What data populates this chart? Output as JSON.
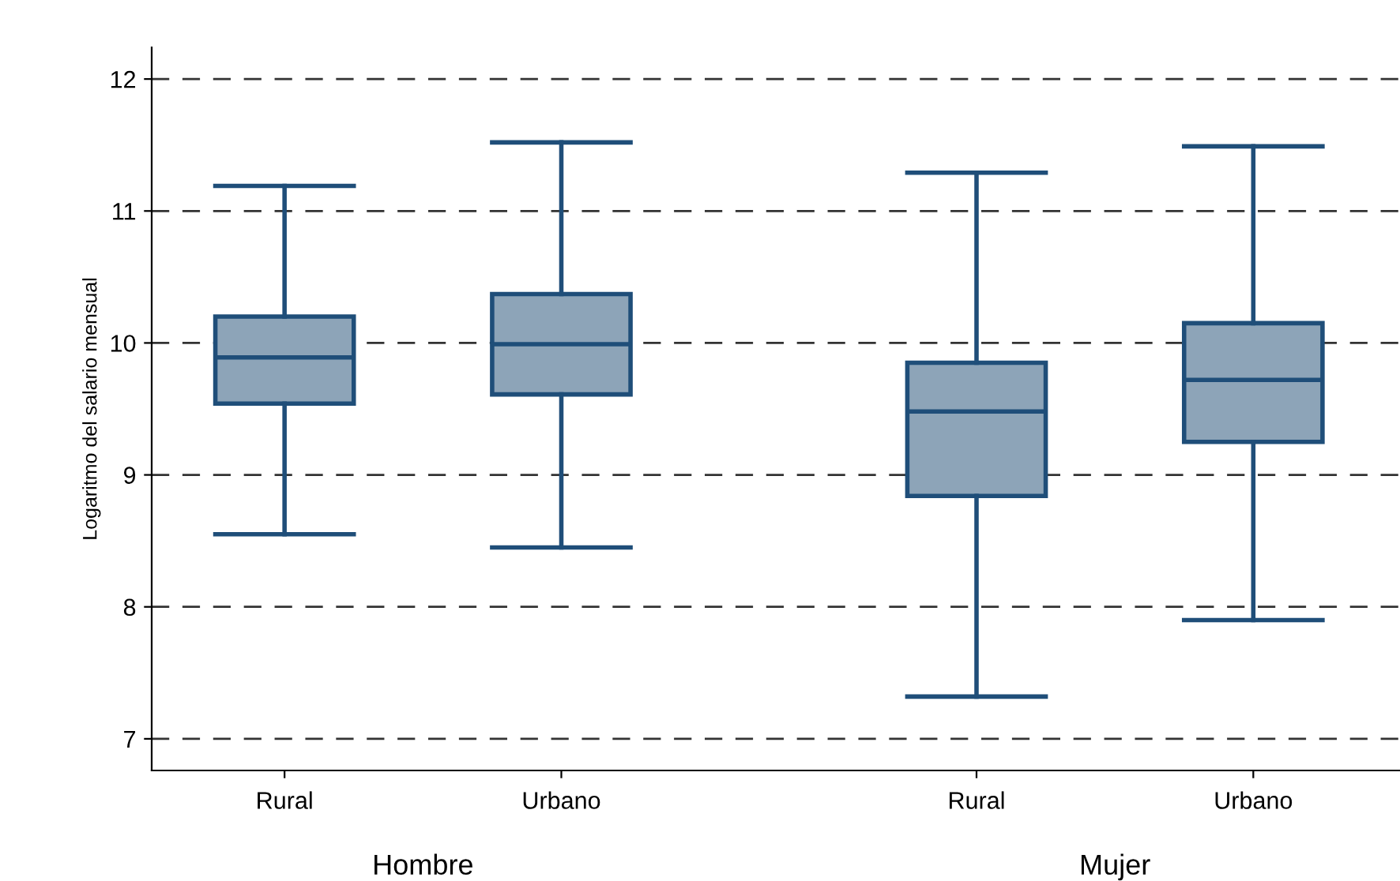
{
  "chart_data": {
    "type": "box",
    "ylabel": "Logaritmo del salario mensual",
    "categories": [
      "Rural",
      "Urbano",
      "Rural",
      "Urbano"
    ],
    "annotations": [
      "Hombre",
      "Mujer"
    ],
    "series": [
      {
        "color": "#8da4b8",
        "boxes": [
          {
            "low": 8.55,
            "q1": 9.54,
            "median": 9.89,
            "q3": 10.2,
            "high": 11.19
          },
          {
            "low": 8.45,
            "q1": 9.61,
            "median": 9.99,
            "q3": 10.37,
            "high": 11.52
          },
          {
            "low": 7.32,
            "q1": 8.84,
            "median": 9.48,
            "q3": 9.85,
            "high": 11.29
          },
          {
            "low": 7.9,
            "q1": 9.25,
            "median": 9.72,
            "q3": 10.15,
            "high": 11.49
          }
        ]
      }
    ],
    "ylim": [
      6.76,
      12.24
    ],
    "yticks": [
      7,
      8,
      9,
      10,
      11,
      12
    ],
    "grid": "y"
  }
}
